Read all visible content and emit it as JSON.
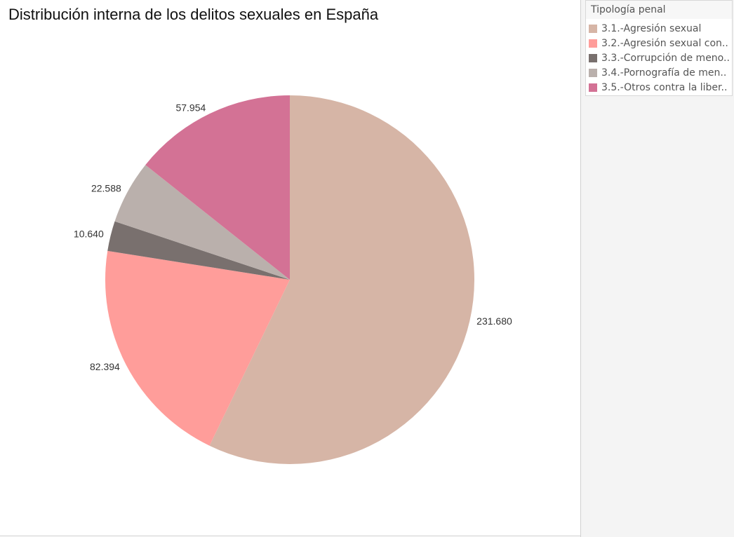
{
  "chart_data": {
    "type": "pie",
    "title": "Distribución interna de los delitos sexuales en España",
    "legend_title": "Tipología penal",
    "categories": [
      "3.1.-Agresión sexual",
      "3.2.-Agresión sexual con..",
      "3.3.-Corrupción de meno..",
      "3.4.-Pornografía de men..",
      "3.5.-Otros contra la liber.."
    ],
    "values": [
      231680,
      82394,
      10640,
      22588,
      57954
    ],
    "value_labels": [
      "231.680",
      "82.394",
      "10.640",
      "22.588",
      "57.954"
    ],
    "colors": [
      "#d6b5a6",
      "#ff9d9a",
      "#79706e",
      "#bab0ac",
      "#d37295"
    ],
    "legend": "top-right"
  }
}
